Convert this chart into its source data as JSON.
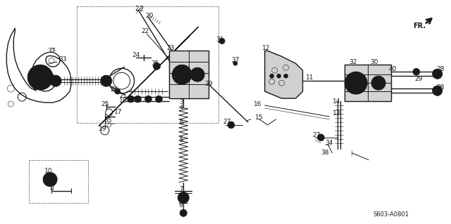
{
  "diagram_code": "S603-A0801",
  "background_color": "#ffffff",
  "line_color": "#1a1a1a",
  "fig_width": 6.4,
  "fig_height": 3.19,
  "dpi": 100
}
